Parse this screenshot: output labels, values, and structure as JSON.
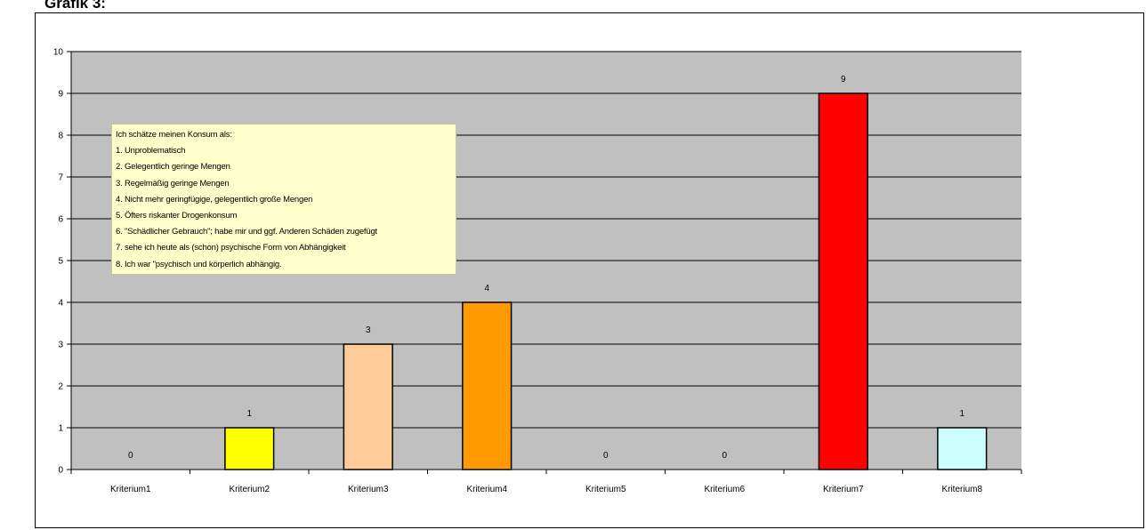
{
  "page": {
    "heading": "Grafik 3:"
  },
  "chart_data": {
    "type": "bar",
    "title": "",
    "xlabel": "",
    "ylabel": "",
    "ylim": [
      0,
      10
    ],
    "yticks": [
      0,
      1,
      2,
      3,
      4,
      5,
      6,
      7,
      8,
      9,
      10
    ],
    "grid": true,
    "categories": [
      "Kriterium1",
      "Kriterium2",
      "Kriterium3",
      "Kriterium4",
      "Kriterium5",
      "Kriterium6",
      "Kriterium7",
      "Kriterium8"
    ],
    "values": [
      0,
      1,
      3,
      4,
      0,
      0,
      9,
      1
    ],
    "data_labels": [
      "0",
      "1",
      "3",
      "4",
      "0",
      "0",
      "9",
      "1"
    ],
    "colors": [
      "#c0c0c0",
      "#ffff00",
      "#ffcc99",
      "#ff9900",
      "#c0c0c0",
      "#c0c0c0",
      "#ff0000",
      "#ccffff"
    ],
    "plot_background": "#c0c0c0",
    "annotation": {
      "lines": [
        "Ich schätze meinen Konsum als:",
        "1.  Unproblematisch",
        "2.  Gelegentlich geringe Mengen",
        "3.  Regelmäßig geringe Mengen",
        "4.  Nicht mehr geringfügige, gelegentlich große Mengen",
        "5.  Öfters riskanter Drogenkonsum",
        "6.  \"Schädlicher Gebrauch\"; habe mir und ggf. Anderen Schäden zugefügt",
        "7.  sehe ich heute als (schon) psychische Form von Abhängigkeit",
        "8.  Ich war \"psychisch und körperlich abhängig."
      ]
    }
  }
}
